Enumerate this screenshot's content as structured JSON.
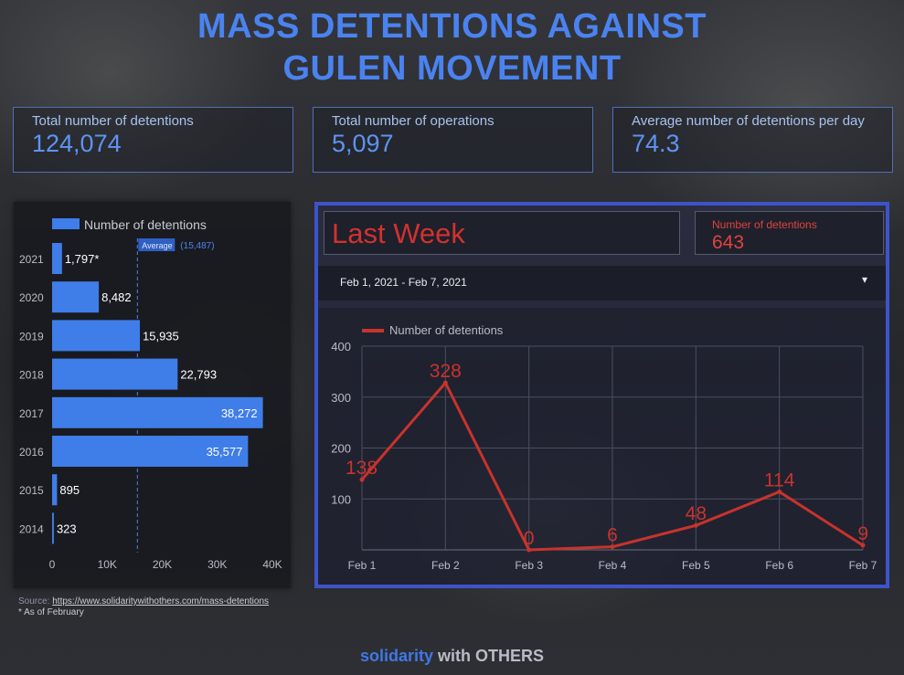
{
  "title_line1": "MASS DETENTIONS AGAINST",
  "title_line2": "GULEN MOVEMENT",
  "kpis": [
    {
      "label": "Total number of detentions",
      "value": "124,074"
    },
    {
      "label": "Total number of operations",
      "value": "5,097"
    },
    {
      "label": "Average number of detentions per day",
      "value": "74.3"
    }
  ],
  "last_week": {
    "title": "Last Week",
    "metric_label": "Number of detentions",
    "metric_value": "643",
    "date_range": "Feb 1, 2021 - Feb 7, 2021",
    "dropdown_icon": "caret-down-icon"
  },
  "colors": {
    "accent": "#4a83f0",
    "bar": "#3f7de9",
    "line": "#c8332c",
    "alert": "#e0433e"
  },
  "chart_data": [
    {
      "type": "bar",
      "orientation": "horizontal",
      "legend": "Number of detentions",
      "categories": [
        "2021",
        "2020",
        "2019",
        "2018",
        "2017",
        "2016",
        "2015",
        "2014"
      ],
      "values": [
        1797,
        8482,
        15935,
        22793,
        38272,
        35577,
        895,
        323
      ],
      "value_labels": [
        "1,797*",
        "8,482",
        "15,935",
        "22,793",
        "38,272",
        "35,577",
        "895",
        "323"
      ],
      "xlim": [
        0,
        40000
      ],
      "xticks": [
        0,
        10000,
        20000,
        30000,
        40000
      ],
      "xtick_labels": [
        "0",
        "10K",
        "20K",
        "30K",
        "40K"
      ],
      "reference_line": {
        "label": "Average",
        "value": 15487,
        "value_label": "(15,487)"
      }
    },
    {
      "type": "line",
      "legend": "Number of detentions",
      "categories": [
        "Feb 1",
        "Feb 2",
        "Feb 3",
        "Feb 4",
        "Feb 5",
        "Feb 6",
        "Feb 7"
      ],
      "values": [
        138,
        328,
        0,
        6,
        48,
        114,
        9
      ],
      "ylim": [
        0,
        400
      ],
      "yticks": [
        100,
        200,
        300,
        400
      ],
      "grid": true
    }
  ],
  "footer": {
    "source_prefix": "Source: ",
    "source_link": "https://www.solidaritywithothers.com/mass-detentions",
    "note": "* As of February"
  },
  "brand": {
    "part1": "solidarity",
    "part2": " with OTHERS"
  }
}
